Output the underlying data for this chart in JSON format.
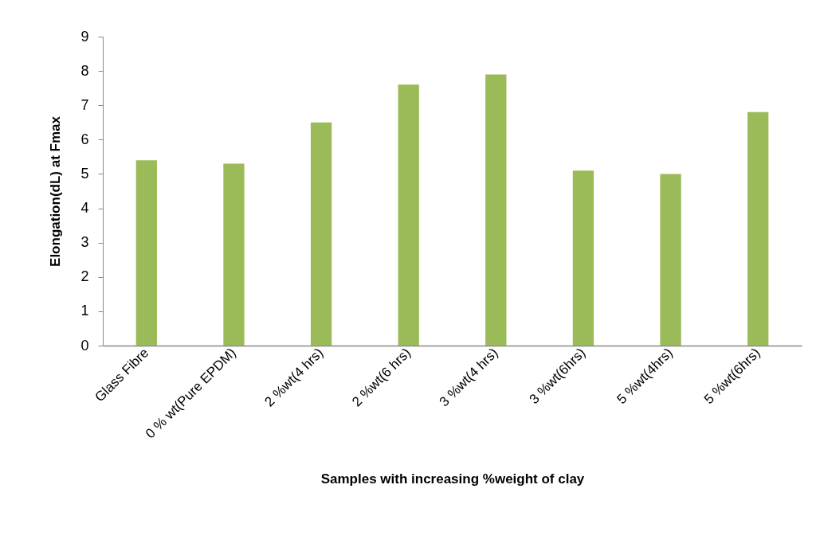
{
  "chart_data": {
    "type": "bar",
    "xlabel": "Samples with increasing %weight of clay",
    "ylabel": "Elongation(dL) at Fmax",
    "categories": [
      "Glass Fibre",
      "0 % wt(Pure EPDM)",
      "2 %wt(4 hrs)",
      "2 %wt(6 hrs)",
      "3 %wt(4 hrs)",
      "3 %wt(6hrs)",
      "5 %wt(4hrs)",
      "5 %wt(6hrs)"
    ],
    "values": [
      5.4,
      5.3,
      6.5,
      7.6,
      7.9,
      5.1,
      5.0,
      6.8
    ],
    "color": "#9bbb59",
    "ylim": [
      0,
      9
    ],
    "yticks": [
      0,
      1,
      2,
      3,
      4,
      5,
      6,
      7,
      8,
      9
    ],
    "grid": false
  }
}
